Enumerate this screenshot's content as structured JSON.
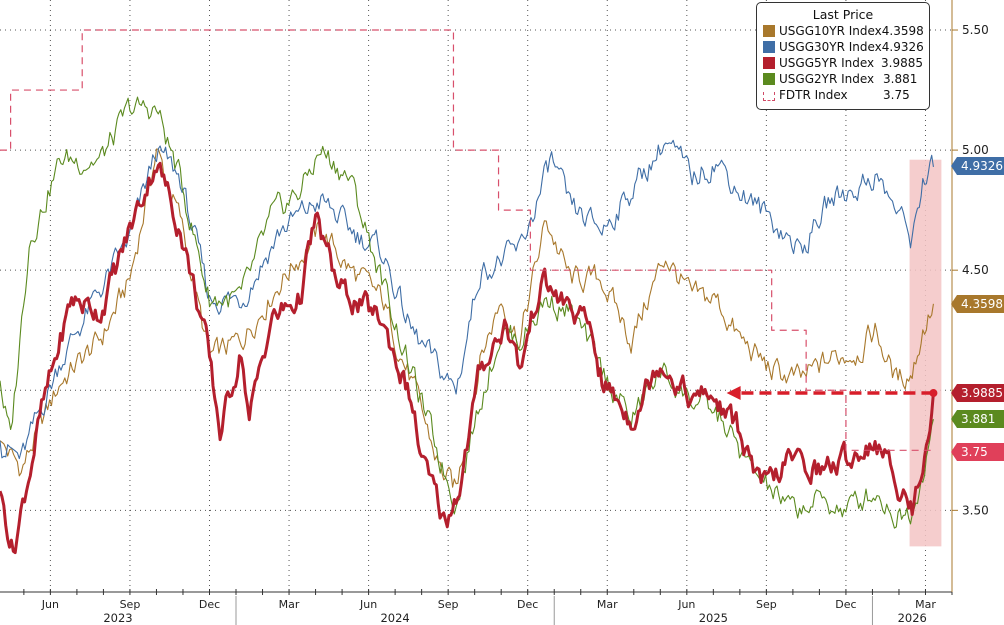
{
  "legend": {
    "title": "Last Price",
    "items": [
      {
        "name": "USGG10YR Index",
        "value": "4.3598",
        "color": "#a8782c"
      },
      {
        "name": "USGG30YR Index",
        "value": "4.9326",
        "color": "#3f6ea6"
      },
      {
        "name": "USGG5YR Index",
        "value": "3.9885",
        "color": "#b41f2d"
      },
      {
        "name": "USGG2YR Index",
        "value": "3.881",
        "color": "#5b8a1f"
      },
      {
        "name": "FDTR Index",
        "value": "3.75",
        "color": "#d8506c"
      }
    ]
  },
  "tags": [
    {
      "label": "4.9326",
      "value": 4.9326,
      "color": "#3f6ea6"
    },
    {
      "label": "4.3598",
      "value": 4.3598,
      "color": "#a8782c"
    },
    {
      "label": "3.9885",
      "value": 3.9885,
      "color": "#b41f2d"
    },
    {
      "label": "3.881",
      "value": 3.881,
      "color": "#5b8a1f"
    },
    {
      "label": "3.75",
      "value": 3.75,
      "color": "#e0405a"
    }
  ],
  "chart_data": {
    "type": "line",
    "title": "",
    "xlabel": "",
    "ylabel": "",
    "x_units": "months since 2023-04-01",
    "xlim": [
      0.1,
      36.0
    ],
    "ylim": [
      3.16,
      5.625
    ],
    "grid": true,
    "legend_position": "top-right",
    "y_ticks": [
      {
        "v": 5.5,
        "label": "5.50"
      },
      {
        "v": 5.0,
        "label": "5.00"
      },
      {
        "v": 4.5,
        "label": "4.50"
      },
      {
        "v": 4.0,
        "label": ""
      },
      {
        "v": 3.5,
        "label": "3.50"
      }
    ],
    "x_ticks": [
      {
        "t": 2,
        "label": "Jun"
      },
      {
        "t": 5,
        "label": "Sep"
      },
      {
        "t": 8,
        "label": "Dec"
      },
      {
        "t": 11,
        "label": "Mar"
      },
      {
        "t": 14,
        "label": "Jun"
      },
      {
        "t": 17,
        "label": "Sep"
      },
      {
        "t": 20,
        "label": "Dec"
      },
      {
        "t": 23,
        "label": "Mar"
      },
      {
        "t": 26,
        "label": "Jun"
      },
      {
        "t": 29,
        "label": "Sep"
      },
      {
        "t": 32,
        "label": "Dec"
      },
      {
        "t": 35,
        "label": "Mar"
      }
    ],
    "years": [
      {
        "label": "2023",
        "start": 0.1,
        "end": 9
      },
      {
        "label": "2024",
        "start": 9,
        "end": 21
      },
      {
        "label": "2025",
        "start": 21,
        "end": 33
      },
      {
        "label": "2026",
        "start": 33,
        "end": 36
      }
    ],
    "highlight": {
      "from_t": 34.4,
      "to_t": 35.6,
      "from_v": 3.35,
      "to_v": 4.96,
      "color": "#f3c4c4"
    },
    "arrow": {
      "from_t": 35.3,
      "to_t": 27.5,
      "value": 3.9885,
      "color": "#d81e2a"
    },
    "series": [
      {
        "name": "USGG10YR Index",
        "color": "#a8782c",
        "width": 1.1,
        "points": [
          [
            0.1,
            3.79
          ],
          [
            0.9,
            3.67
          ],
          [
            2.4,
            4.04
          ],
          [
            3.9,
            4.21
          ],
          [
            5.0,
            4.46
          ],
          [
            6.0,
            5.0
          ],
          [
            6.9,
            4.71
          ],
          [
            8.0,
            4.13
          ],
          [
            9.2,
            4.21
          ],
          [
            10.7,
            4.46
          ],
          [
            12.2,
            4.67
          ],
          [
            13.3,
            4.5
          ],
          [
            14.5,
            4.38
          ],
          [
            15.6,
            4.04
          ],
          [
            16.7,
            3.67
          ],
          [
            17.3,
            3.58
          ],
          [
            18.2,
            4.13
          ],
          [
            19.0,
            4.38
          ],
          [
            19.7,
            4.21
          ],
          [
            20.7,
            4.71
          ],
          [
            21.6,
            4.46
          ],
          [
            22.8,
            4.46
          ],
          [
            23.9,
            4.21
          ],
          [
            25.2,
            4.56
          ],
          [
            26.2,
            4.38
          ],
          [
            27.1,
            4.38
          ],
          [
            28.0,
            4.21
          ],
          [
            29.2,
            4.08
          ],
          [
            30.3,
            4.04
          ],
          [
            31.4,
            4.13
          ],
          [
            32.5,
            4.17
          ],
          [
            33.1,
            4.25
          ],
          [
            33.9,
            4.04
          ],
          [
            34.5,
            4.08
          ],
          [
            34.9,
            4.25
          ],
          [
            35.3,
            4.36
          ]
        ]
      },
      {
        "name": "USGG30YR Index",
        "color": "#3f6ea6",
        "width": 1.1,
        "points": [
          [
            0.1,
            3.79
          ],
          [
            0.9,
            3.71
          ],
          [
            2.4,
            4.13
          ],
          [
            3.9,
            4.42
          ],
          [
            5.0,
            4.63
          ],
          [
            6.0,
            5.0
          ],
          [
            6.9,
            4.88
          ],
          [
            8.0,
            4.38
          ],
          [
            9.2,
            4.38
          ],
          [
            10.7,
            4.67
          ],
          [
            12.2,
            4.79
          ],
          [
            13.3,
            4.67
          ],
          [
            14.5,
            4.58
          ],
          [
            15.6,
            4.25
          ],
          [
            16.7,
            4.08
          ],
          [
            17.3,
            4.0
          ],
          [
            18.2,
            4.5
          ],
          [
            19.0,
            4.54
          ],
          [
            19.7,
            4.58
          ],
          [
            20.9,
            4.96
          ],
          [
            21.6,
            4.75
          ],
          [
            22.8,
            4.67
          ],
          [
            23.9,
            4.83
          ],
          [
            25.2,
            5.04
          ],
          [
            26.2,
            4.88
          ],
          [
            27.1,
            4.96
          ],
          [
            28.0,
            4.83
          ],
          [
            29.2,
            4.71
          ],
          [
            30.3,
            4.58
          ],
          [
            31.4,
            4.79
          ],
          [
            32.5,
            4.85
          ],
          [
            33.1,
            4.9
          ],
          [
            33.9,
            4.75
          ],
          [
            34.5,
            4.63
          ],
          [
            34.9,
            4.88
          ],
          [
            35.3,
            4.93
          ]
        ]
      },
      {
        "name": "USGG2YR Index",
        "color": "#5b8a1f",
        "width": 1.1,
        "points": [
          [
            0.1,
            4.04
          ],
          [
            0.5,
            3.79
          ],
          [
            1.2,
            4.63
          ],
          [
            2.4,
            4.96
          ],
          [
            3.9,
            4.96
          ],
          [
            5.0,
            5.17
          ],
          [
            6.0,
            5.17
          ],
          [
            6.9,
            4.88
          ],
          [
            8.0,
            4.38
          ],
          [
            9.2,
            4.38
          ],
          [
            10.3,
            4.71
          ],
          [
            11.4,
            4.83
          ],
          [
            12.2,
            5.0
          ],
          [
            13.3,
            4.88
          ],
          [
            14.5,
            4.46
          ],
          [
            15.6,
            4.08
          ],
          [
            16.7,
            3.71
          ],
          [
            17.3,
            3.54
          ],
          [
            18.2,
            3.96
          ],
          [
            19.0,
            4.25
          ],
          [
            19.7,
            4.21
          ],
          [
            20.7,
            4.38
          ],
          [
            21.6,
            4.33
          ],
          [
            22.8,
            4.08
          ],
          [
            23.9,
            3.88
          ],
          [
            25.0,
            4.08
          ],
          [
            26.2,
            3.96
          ],
          [
            27.3,
            3.88
          ],
          [
            28.4,
            3.67
          ],
          [
            29.9,
            3.5
          ],
          [
            31.1,
            3.54
          ],
          [
            32.0,
            3.5
          ],
          [
            33.1,
            3.58
          ],
          [
            33.9,
            3.48
          ],
          [
            34.5,
            3.5
          ],
          [
            34.9,
            3.67
          ],
          [
            35.3,
            3.88
          ]
        ]
      },
      {
        "name": "USGG5YR Index",
        "color": "#b41f2d",
        "width": 3,
        "points": [
          [
            0.1,
            3.58
          ],
          [
            0.6,
            3.33
          ],
          [
            1.6,
            3.88
          ],
          [
            2.8,
            4.38
          ],
          [
            3.9,
            4.33
          ],
          [
            5.0,
            4.67
          ],
          [
            6.0,
            4.96
          ],
          [
            6.9,
            4.67
          ],
          [
            7.8,
            4.25
          ],
          [
            8.4,
            3.83
          ],
          [
            9.2,
            4.17
          ],
          [
            9.5,
            3.88
          ],
          [
            10.3,
            4.29
          ],
          [
            11.4,
            4.38
          ],
          [
            12.0,
            4.71
          ],
          [
            12.9,
            4.42
          ],
          [
            14.5,
            4.29
          ],
          [
            15.6,
            3.96
          ],
          [
            16.0,
            3.71
          ],
          [
            16.9,
            3.44
          ],
          [
            17.5,
            3.63
          ],
          [
            18.2,
            4.08
          ],
          [
            19.2,
            4.29
          ],
          [
            19.7,
            4.08
          ],
          [
            20.5,
            4.46
          ],
          [
            21.2,
            4.38
          ],
          [
            22.4,
            4.25
          ],
          [
            22.8,
            4.04
          ],
          [
            23.9,
            3.88
          ],
          [
            25.0,
            4.13
          ],
          [
            26.2,
            3.96
          ],
          [
            26.9,
            3.98
          ],
          [
            28.0,
            3.83
          ],
          [
            28.8,
            3.58
          ],
          [
            29.9,
            3.71
          ],
          [
            31.1,
            3.67
          ],
          [
            32.0,
            3.71
          ],
          [
            33.1,
            3.79
          ],
          [
            33.9,
            3.63
          ],
          [
            34.5,
            3.5
          ],
          [
            34.9,
            3.71
          ],
          [
            35.3,
            3.99
          ]
        ]
      },
      {
        "name": "FDTR Index",
        "color": "#d8506c",
        "width": 1.2,
        "dashed": true,
        "step": true,
        "points": [
          [
            0.1,
            5.0
          ],
          [
            0.5,
            5.25
          ],
          [
            3.2,
            5.5
          ],
          [
            17.2,
            5.0
          ],
          [
            18.9,
            4.75
          ],
          [
            20.1,
            4.5
          ],
          [
            29.2,
            4.25
          ],
          [
            30.5,
            4.0
          ],
          [
            32.0,
            3.75
          ],
          [
            35.3,
            3.75
          ]
        ]
      }
    ]
  }
}
